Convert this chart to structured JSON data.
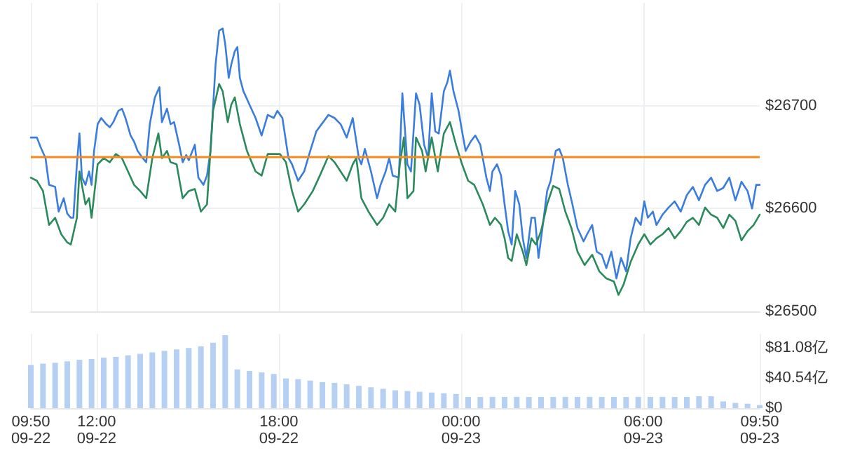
{
  "chart_data": [
    {
      "type": "line",
      "tick_labels": "y",
      "grid": true,
      "marker": "none",
      "line_style": "solid",
      "xlim": [
        "--09-22T09:50",
        "--09-23T09:50"
      ],
      "xticks": [
        {
          "value": "--09-22T09:50",
          "label": null
        },
        {
          "value": "--09-22T12:00",
          "label": null
        },
        {
          "value": "--09-22T18:00",
          "label": null
        },
        {
          "value": "--09-23T00:00",
          "label": null
        },
        {
          "value": "--09-23T06:00",
          "label": null
        }
      ],
      "ylim": [
        26500,
        26800
      ],
      "yticks": [
        {
          "value": 26500,
          "label": "$26500"
        },
        {
          "value": 26600,
          "label": "$26600"
        },
        {
          "value": 26700,
          "label": "$26700"
        }
      ],
      "ref_lines": [
        {
          "axis": "y",
          "value": 26650,
          "color": "#f28a1c"
        }
      ],
      "series": [
        {
          "color": "#3b7ddd",
          "x": [
            "--09-22T09:50",
            "--09-22T10:02",
            "--09-22T10:09",
            "--09-22T10:19",
            "--09-22T10:26",
            "--09-22T10:38",
            "--09-22T10:45",
            "--09-22T10:55",
            "--09-22T11:02",
            "--09-22T11:09",
            "--09-22T11:14",
            "--09-22T11:21",
            "--09-22T11:26",
            "--09-22T11:31",
            "--09-22T11:38",
            "--09-22T11:45",
            "--09-22T11:50",
            "--09-22T11:55",
            "--09-22T12:02",
            "--09-22T12:09",
            "--09-22T12:19",
            "--09-22T12:26",
            "--09-22T12:33",
            "--09-22T12:43",
            "--09-22T12:50",
            "--09-22T12:57",
            "--09-22T13:07",
            "--09-22T13:14",
            "--09-22T13:21",
            "--09-22T13:31",
            "--09-22T13:38",
            "--09-22T13:45",
            "--09-22T13:55",
            "--09-22T14:04",
            "--09-22T14:09",
            "--09-22T14:19",
            "--09-22T14:26",
            "--09-22T14:33",
            "--09-22T14:43",
            "--09-22T14:50",
            "--09-22T14:57",
            "--09-22T15:02",
            "--09-22T15:14",
            "--09-22T15:21",
            "--09-22T15:31",
            "--09-22T15:38",
            "--09-22T15:45",
            "--09-22T15:55",
            "--09-22T16:02",
            "--09-22T16:09",
            "--09-22T16:14",
            "--09-22T16:21",
            "--09-22T16:26",
            "--09-22T16:33",
            "--09-22T16:38",
            "--09-22T16:43",
            "--09-22T16:50",
            "--09-22T17:02",
            "--09-22T17:14",
            "--09-22T17:26",
            "--09-22T17:38",
            "--09-22T17:50",
            "--09-22T17:57",
            "--09-22T18:07",
            "--09-22T18:19",
            "--09-22T18:26",
            "--09-22T18:38",
            "--09-22T18:50",
            "--09-22T19:02",
            "--09-22T19:14",
            "--09-22T19:38",
            "--09-22T19:50",
            "--09-22T20:02",
            "--09-22T20:14",
            "--09-22T20:26",
            "--09-22T20:38",
            "--09-22T20:43",
            "--09-22T20:50",
            "--09-22T21:02",
            "--09-22T21:14",
            "--09-22T21:21",
            "--09-22T21:31",
            "--09-22T21:38",
            "--09-22T21:45",
            "--09-22T21:57",
            "--09-22T22:04",
            "--09-22T22:14",
            "--09-22T22:21",
            "--09-22T22:31",
            "--09-22T22:38",
            "--09-22T22:47",
            "--09-22T22:55",
            "--09-22T23:02",
            "--09-22T23:09",
            "--09-22T23:16",
            "--09-22T23:26",
            "--09-22T23:33",
            "--09-22T23:38",
            "--09-22T23:45",
            "--09-22T23:55",
            "--09-23T00:02",
            "--09-23T00:09",
            "--09-23T00:19",
            "--09-23T00:28",
            "--09-23T00:38",
            "--09-23T00:50",
            "--09-23T00:57",
            "--09-23T01:02",
            "--09-23T01:11",
            "--09-23T01:19",
            "--09-23T01:26",
            "--09-23T01:33",
            "--09-23T01:40",
            "--09-23T01:47",
            "--09-23T01:55",
            "--09-23T02:02",
            "--09-23T02:09",
            "--09-23T02:19",
            "--09-23T02:26",
            "--09-23T02:33",
            "--09-23T02:40",
            "--09-23T02:50",
            "--09-23T02:57",
            "--09-23T03:07",
            "--09-23T03:14",
            "--09-23T03:21",
            "--09-23T03:31",
            "--09-23T03:40",
            "--09-23T03:50",
            "--09-23T04:02",
            "--09-23T04:09",
            "--09-23T04:19",
            "--09-23T04:28",
            "--09-23T04:38",
            "--09-23T04:47",
            "--09-23T04:57",
            "--09-23T05:07",
            "--09-23T05:16",
            "--09-23T05:26",
            "--09-23T05:35",
            "--09-23T05:45",
            "--09-23T05:55",
            "--09-23T06:02",
            "--09-23T06:09",
            "--09-23T06:19",
            "--09-23T06:26",
            "--09-23T06:38",
            "--09-23T06:50",
            "--09-23T07:02",
            "--09-23T07:14",
            "--09-23T07:26",
            "--09-23T07:38",
            "--09-23T07:50",
            "--09-23T08:02",
            "--09-23T08:14",
            "--09-23T08:26",
            "--09-23T08:38",
            "--09-23T08:50",
            "--09-23T09:02",
            "--09-23T09:14",
            "--09-23T09:26",
            "--09-23T09:35",
            "--09-23T09:43",
            "--09-23T09:50"
          ],
          "values": [
            26669,
            26669,
            26660,
            26649,
            26623,
            26621,
            26597,
            26610,
            26595,
            26591,
            26591,
            26643,
            26673,
            26630,
            26623,
            26636,
            26623,
            26656,
            26682,
            26688,
            26682,
            26679,
            26684,
            26695,
            26697,
            26688,
            26671,
            26665,
            26656,
            26649,
            26645,
            26682,
            26708,
            26718,
            26684,
            26697,
            26682,
            26684,
            26662,
            26645,
            26652,
            26647,
            26662,
            26630,
            26623,
            26632,
            26656,
            26740,
            26773,
            26775,
            26760,
            26727,
            26740,
            26753,
            26757,
            26727,
            26714,
            26701,
            26688,
            26671,
            26691,
            26688,
            26695,
            26688,
            26649,
            26643,
            26627,
            26636,
            26656,
            26675,
            26691,
            26688,
            26682,
            26669,
            26688,
            26649,
            26643,
            26658,
            26636,
            26610,
            26623,
            26636,
            26649,
            26632,
            26630,
            26712,
            26643,
            26636,
            26712,
            26701,
            26662,
            26649,
            26712,
            26675,
            26673,
            26714,
            26723,
            26734,
            26714,
            26695,
            26675,
            26656,
            26665,
            26671,
            26662,
            26630,
            26617,
            26636,
            26643,
            26632,
            26604,
            26578,
            26565,
            26617,
            26604,
            26571,
            26552,
            26591,
            26591,
            26552,
            26578,
            26617,
            26627,
            26656,
            26658,
            26649,
            26623,
            26604,
            26581,
            26568,
            26575,
            26584,
            26558,
            26555,
            26542,
            26558,
            26532,
            26552,
            26539,
            26571,
            26591,
            26584,
            26607,
            26591,
            26597,
            26584,
            26594,
            26601,
            26607,
            26597,
            26613,
            26621,
            26608,
            26623,
            26630,
            26617,
            26620,
            26630,
            26608,
            26626,
            26617,
            26600,
            26623,
            26623
          ]
        },
        {
          "color": "#2b8a5c",
          "x": [
            "--09-22T09:50",
            "--09-22T10:02",
            "--09-22T10:14",
            "--09-22T10:26",
            "--09-22T10:38",
            "--09-22T10:50",
            "--09-22T11:02",
            "--09-22T11:09",
            "--09-22T11:21",
            "--09-22T11:26",
            "--09-22T11:38",
            "--09-22T11:45",
            "--09-22T11:50",
            "--09-22T12:02",
            "--09-22T12:14",
            "--09-22T12:26",
            "--09-22T12:38",
            "--09-22T12:50",
            "--09-22T13:02",
            "--09-22T13:14",
            "--09-22T13:26",
            "--09-22T13:38",
            "--09-22T13:50",
            "--09-22T14:02",
            "--09-22T14:09",
            "--09-22T14:19",
            "--09-22T14:26",
            "--09-22T14:38",
            "--09-22T14:50",
            "--09-22T15:02",
            "--09-22T15:14",
            "--09-22T15:26",
            "--09-22T15:38",
            "--09-22T15:50",
            "--09-22T16:02",
            "--09-22T16:09",
            "--09-22T16:19",
            "--09-22T16:26",
            "--09-22T16:33",
            "--09-22T16:43",
            "--09-22T16:57",
            "--09-22T17:14",
            "--09-22T17:26",
            "--09-22T17:38",
            "--09-22T17:50",
            "--09-22T18:02",
            "--09-22T18:14",
            "--09-22T18:26",
            "--09-22T18:38",
            "--09-22T18:50",
            "--09-22T19:07",
            "--09-22T19:21",
            "--09-22T19:38",
            "--09-22T19:50",
            "--09-22T20:02",
            "--09-22T20:14",
            "--09-22T20:26",
            "--09-22T20:33",
            "--09-22T20:43",
            "--09-22T20:57",
            "--09-22T21:14",
            "--09-22T21:26",
            "--09-22T21:38",
            "--09-22T21:50",
            "--09-22T21:59",
            "--09-22T22:07",
            "--09-22T22:14",
            "--09-22T22:26",
            "--09-22T22:31",
            "--09-22T22:43",
            "--09-22T22:50",
            "--09-22T23:02",
            "--09-22T23:14",
            "--09-22T23:26",
            "--09-22T23:38",
            "--09-22T23:50",
            "--09-23T00:02",
            "--09-23T00:14",
            "--09-23T00:26",
            "--09-23T00:43",
            "--09-23T00:57",
            "--09-23T01:07",
            "--09-23T01:19",
            "--09-23T01:26",
            "--09-23T01:33",
            "--09-23T01:40",
            "--09-23T01:50",
            "--09-23T02:02",
            "--09-23T02:09",
            "--09-23T02:19",
            "--09-23T02:28",
            "--09-23T02:38",
            "--09-23T02:50",
            "--09-23T03:02",
            "--09-23T03:14",
            "--09-23T03:26",
            "--09-23T03:38",
            "--09-23T03:50",
            "--09-23T04:04",
            "--09-23T04:19",
            "--09-23T04:33",
            "--09-23T04:47",
            "--09-23T05:02",
            "--09-23T05:11",
            "--09-23T05:21",
            "--09-23T05:35",
            "--09-23T05:50",
            "--09-23T06:02",
            "--09-23T06:14",
            "--09-23T06:26",
            "--09-23T06:38",
            "--09-23T06:50",
            "--09-23T07:02",
            "--09-23T07:14",
            "--09-23T07:26",
            "--09-23T07:38",
            "--09-23T07:50",
            "--09-23T08:02",
            "--09-23T08:14",
            "--09-23T08:26",
            "--09-23T08:38",
            "--09-23T08:50",
            "--09-23T09:02",
            "--09-23T09:14",
            "--09-23T09:26",
            "--09-23T09:38",
            "--09-23T09:50"
          ],
          "values": [
            26630,
            26627,
            26617,
            26584,
            26591,
            26575,
            26567,
            26565,
            26591,
            26636,
            26604,
            26610,
            26591,
            26643,
            26649,
            26645,
            26653,
            26649,
            26636,
            26623,
            26617,
            26610,
            26649,
            26673,
            26649,
            26656,
            26645,
            26643,
            26610,
            26617,
            26619,
            26597,
            26604,
            26695,
            26721,
            26714,
            26684,
            26701,
            26708,
            26682,
            26656,
            26636,
            26632,
            26653,
            26653,
            26653,
            26645,
            26617,
            26597,
            26604,
            26617,
            26632,
            26651,
            26645,
            26636,
            26627,
            26643,
            26649,
            26610,
            26597,
            26584,
            26591,
            26604,
            26597,
            26643,
            26669,
            26610,
            26617,
            26669,
            26656,
            26636,
            26669,
            26636,
            26673,
            26684,
            26662,
            26643,
            26627,
            26623,
            26604,
            26584,
            26591,
            26584,
            26571,
            26552,
            26549,
            26575,
            26558,
            26545,
            26571,
            26565,
            26578,
            26604,
            26622,
            26619,
            26597,
            26581,
            26558,
            26545,
            26555,
            26539,
            26532,
            26529,
            26516,
            26526,
            26548,
            26565,
            26575,
            26565,
            26571,
            26575,
            26581,
            26571,
            26578,
            26587,
            26591,
            26584,
            26601,
            26594,
            26591,
            26581,
            26594,
            26588,
            26569,
            26578,
            26584,
            26594
          ]
        }
      ]
    },
    {
      "type": "bar",
      "grid": "x",
      "xlim": [
        "--09-22T09:50",
        "--09-23T09:50"
      ],
      "xticks": [
        {
          "value": "--09-22T09:50",
          "label": "09:50\n09-22"
        },
        {
          "value": "--09-22T12:00",
          "label": "12:00\n09-22"
        },
        {
          "value": "--09-22T18:00",
          "label": "18:00\n09-22"
        },
        {
          "value": "--09-23T00:00",
          "label": "00:00\n09-23"
        },
        {
          "value": "--09-23T06:00",
          "label": "06:00\n09-23"
        },
        {
          "value": "--09-23T09:50",
          "label": "09:50\n09-23"
        }
      ],
      "ylim": [
        0,
        100
      ],
      "yticks": [
        {
          "value": 0,
          "label": "$0"
        },
        {
          "value": 40.54,
          "label": "$40.54亿"
        },
        {
          "value": 81.08,
          "label": "$81.08亿"
        }
      ],
      "series": [
        {
          "color": "#b5d0f2",
          "x": [
            "--09-22T09:50",
            "--09-22T10:14",
            "--09-22T10:38",
            "--09-22T11:02",
            "--09-22T11:26",
            "--09-22T11:50",
            "--09-22T12:14",
            "--09-22T12:38",
            "--09-22T13:02",
            "--09-22T13:26",
            "--09-22T13:50",
            "--09-22T14:14",
            "--09-22T14:38",
            "--09-22T15:02",
            "--09-22T15:26",
            "--09-22T15:50",
            "--09-22T16:14",
            "--09-22T16:38",
            "--09-22T17:02",
            "--09-22T17:26",
            "--09-22T17:50",
            "--09-22T18:14",
            "--09-22T18:38",
            "--09-22T19:02",
            "--09-22T19:26",
            "--09-22T19:50",
            "--09-22T20:14",
            "--09-22T20:38",
            "--09-22T21:02",
            "--09-22T21:26",
            "--09-22T21:50",
            "--09-22T22:14",
            "--09-22T22:38",
            "--09-22T23:02",
            "--09-22T23:26",
            "--09-22T23:50",
            "--09-23T00:14",
            "--09-23T00:38",
            "--09-23T01:02",
            "--09-23T01:26",
            "--09-23T01:50",
            "--09-23T02:14",
            "--09-23T02:38",
            "--09-23T03:02",
            "--09-23T03:26",
            "--09-23T03:50",
            "--09-23T04:14",
            "--09-23T04:38",
            "--09-23T05:02",
            "--09-23T05:26",
            "--09-23T05:50",
            "--09-23T06:14",
            "--09-23T06:38",
            "--09-23T07:02",
            "--09-23T07:26",
            "--09-23T07:50",
            "--09-23T08:14",
            "--09-23T08:38",
            "--09-23T09:02",
            "--09-23T09:26",
            "--09-23T09:50"
          ],
          "values": [
            58,
            60,
            61,
            63,
            65,
            66,
            68,
            69,
            71,
            73,
            75,
            77,
            79,
            81,
            83,
            88,
            98,
            52,
            50,
            48,
            46,
            40,
            39,
            37,
            35,
            34,
            32,
            30,
            28,
            26,
            24,
            23,
            22,
            21,
            20,
            19,
            15,
            15,
            15,
            15,
            15,
            15,
            15,
            15,
            15,
            15,
            15,
            15,
            15,
            15,
            15,
            15,
            15,
            15,
            15,
            16,
            16,
            9,
            7,
            6,
            4
          ]
        }
      ]
    }
  ]
}
